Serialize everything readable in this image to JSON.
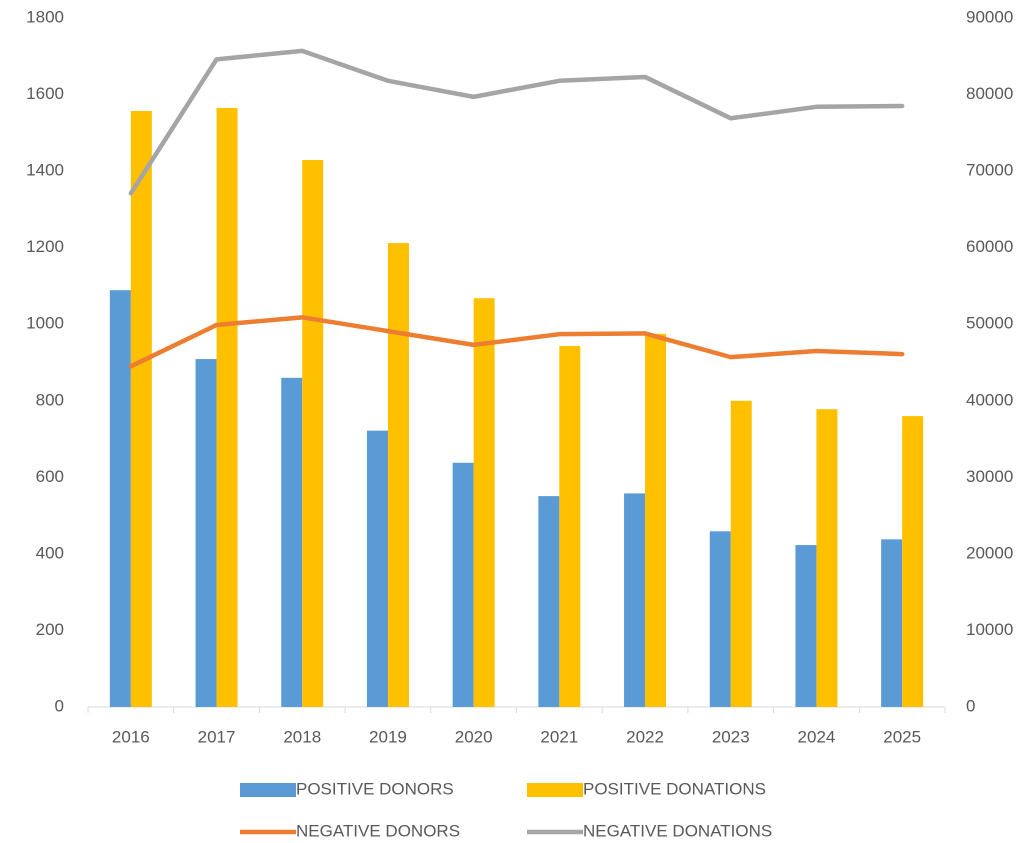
{
  "chart_data": {
    "type": "bar_line",
    "categories": [
      "2016",
      "2017",
      "2018",
      "2019",
      "2020",
      "2021",
      "2022",
      "2023",
      "2024",
      "2025"
    ],
    "series": [
      {
        "name": "POSITIVE DONORS",
        "type": "bar",
        "color": "#5b9bd5",
        "values": [
          1089,
          909,
          860,
          722,
          638,
          551,
          558,
          459,
          423,
          438
        ]
      },
      {
        "name": "POSITIVE DONATIONS",
        "type": "bar",
        "color": "#ffc000",
        "values": [
          1557,
          1565,
          1429,
          1212,
          1068,
          943,
          975,
          800,
          778,
          760
        ]
      },
      {
        "name": "NEGATIVE DONORS",
        "type": "line",
        "axis": "y2",
        "color": "#ed7d31",
        "values": [
          44500,
          49900,
          50900,
          49100,
          47300,
          48700,
          48800,
          45700,
          46500,
          46100
        ]
      },
      {
        "name": "NEGATIVE DONATIONS",
        "type": "line",
        "axis": "y2",
        "color": "#a5a5a5",
        "values": [
          67100,
          84600,
          85700,
          81800,
          79700,
          81800,
          82300,
          76900,
          78400,
          78500
        ]
      }
    ],
    "ylim": [
      0,
      1800
    ],
    "yticks": [
      0,
      200,
      400,
      600,
      800,
      1000,
      1200,
      1400,
      1600,
      1800
    ],
    "y2lim": [
      0,
      90000
    ],
    "y2ticks": [
      0,
      10000,
      20000,
      30000,
      40000,
      50000,
      60000,
      70000,
      80000,
      90000
    ],
    "grid": false,
    "legend": "bottom"
  }
}
